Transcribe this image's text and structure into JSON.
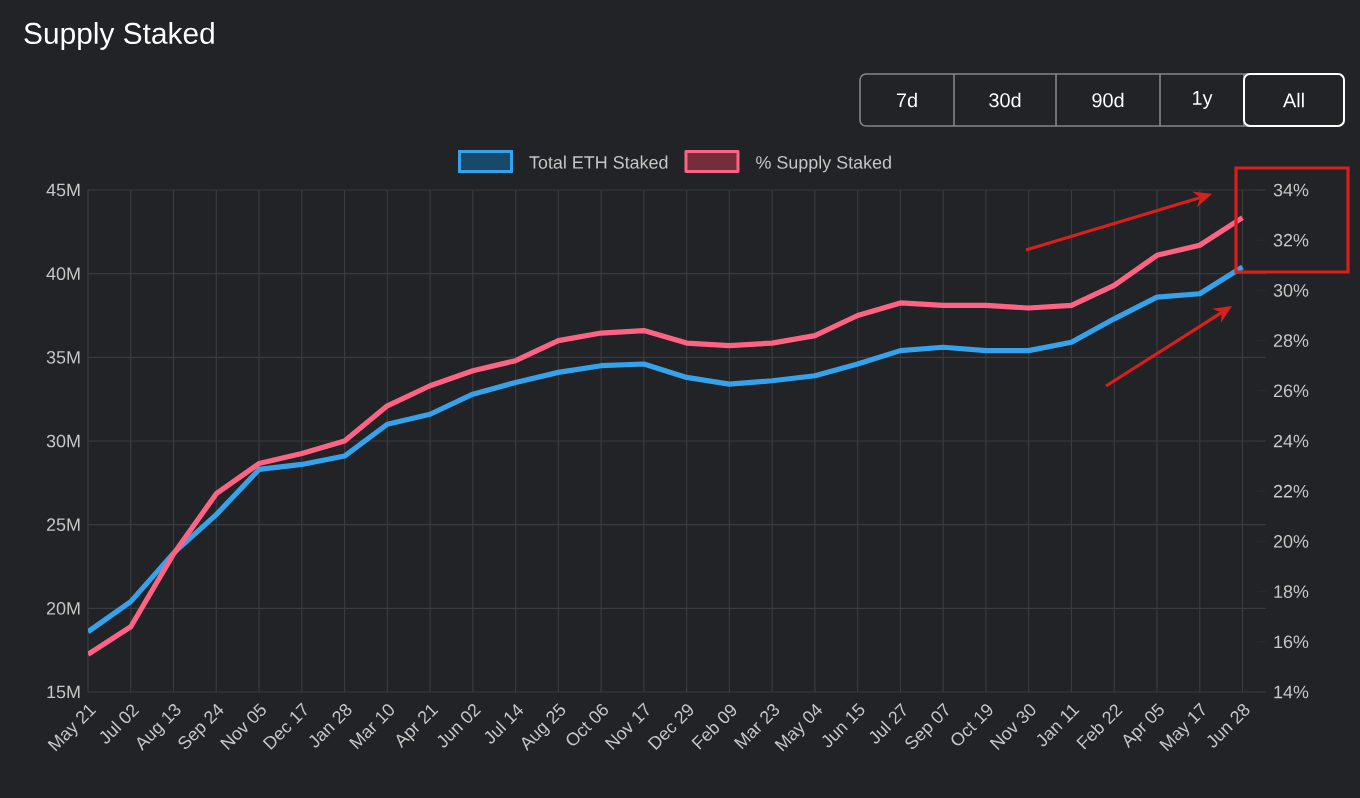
{
  "chart_data": {
    "type": "line",
    "title": "Supply Staked",
    "annotations": [
      "7d",
      "30d",
      "90d",
      "1y",
      "All"
    ],
    "categories": [
      "May 21",
      "Jul 02",
      "Aug 13",
      "Sep 24",
      "Nov 05",
      "Dec 17",
      "Jan 28",
      "Mar 10",
      "Apr 21",
      "Jun 02",
      "Jul 14",
      "Aug 25",
      "Oct 06",
      "Nov 17",
      "Dec 29",
      "Feb 09",
      "Mar 23",
      "May 04",
      "Jun 15",
      "Jul 27",
      "Sep 07",
      "Oct 19",
      "Nov 30",
      "Jan 11",
      "Feb 22",
      "Apr 05",
      "May 17",
      "Jun 28"
    ],
    "series": [
      {
        "name": "Total ETH Staked",
        "color": "#36a2eb",
        "axis": "y",
        "values": [
          18.6,
          20.4,
          23.3,
          25.6,
          28.3,
          28.6,
          29.1,
          31.0,
          31.6,
          32.8,
          33.5,
          34.1,
          34.5,
          34.6,
          33.8,
          33.4,
          33.6,
          33.9,
          34.6,
          35.4,
          35.6,
          35.4,
          35.4,
          35.9,
          37.3,
          38.6,
          38.8,
          40.4
        ]
      },
      {
        "name": "% Supply Staked",
        "color": "#ff6384",
        "axis": "y2",
        "values": [
          15.5,
          16.6,
          19.5,
          21.9,
          23.1,
          23.5,
          24.0,
          25.4,
          26.2,
          26.8,
          27.2,
          28.0,
          28.3,
          28.4,
          27.9,
          27.8,
          27.9,
          28.2,
          29.0,
          29.5,
          29.4,
          29.4,
          29.3,
          29.4,
          30.2,
          31.4,
          31.8,
          32.9
        ]
      }
    ],
    "ylim": [
      15,
      45
    ],
    "yticks": [
      {
        "value": 15,
        "label": "15M"
      },
      {
        "value": 20,
        "label": "20M"
      },
      {
        "value": 25,
        "label": "25M"
      },
      {
        "value": 30,
        "label": "30M"
      },
      {
        "value": 35,
        "label": "35M"
      },
      {
        "value": 40,
        "label": "40M"
      },
      {
        "value": 45,
        "label": "45M"
      }
    ],
    "y2lim": [
      14,
      34
    ],
    "y2ticks": [
      {
        "value": 14,
        "label": "14%"
      },
      {
        "value": 16,
        "label": "16%"
      },
      {
        "value": 18,
        "label": "18%"
      },
      {
        "value": 20,
        "label": "20%"
      },
      {
        "value": 22,
        "label": "22%"
      },
      {
        "value": 24,
        "label": "24%"
      },
      {
        "value": 26,
        "label": "26%"
      },
      {
        "value": 28,
        "label": "28%"
      },
      {
        "value": 30,
        "label": "30%"
      },
      {
        "value": 32,
        "label": "32%"
      },
      {
        "value": 34,
        "label": "34%"
      }
    ],
    "grid": true,
    "legend": "top",
    "line_style": "solid"
  }
}
